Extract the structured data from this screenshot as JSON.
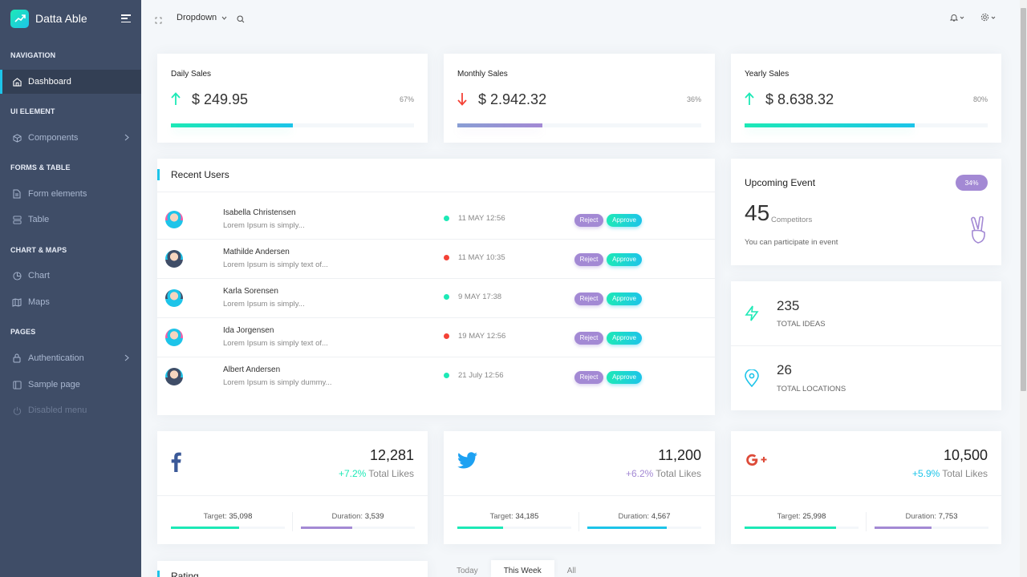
{
  "brand": {
    "name": "Datta Able"
  },
  "nav": {
    "captions": [
      "NAVIGATION",
      "UI ELEMENT",
      "FORMS & TABLE",
      "CHART & MAPS",
      "PAGES"
    ],
    "items": [
      {
        "label": "Dashboard",
        "icon": "home-icon"
      },
      {
        "label": "Components",
        "icon": "box-icon"
      },
      {
        "label": "Form elements",
        "icon": "file-text-icon"
      },
      {
        "label": "Table",
        "icon": "server-icon"
      },
      {
        "label": "Chart",
        "icon": "pie-chart-icon"
      },
      {
        "label": "Maps",
        "icon": "map-icon"
      },
      {
        "label": "Authentication",
        "icon": "lock-icon"
      },
      {
        "label": "Sample page",
        "icon": "sidebar-icon"
      },
      {
        "label": "Disabled menu",
        "icon": "power-icon"
      }
    ]
  },
  "header": {
    "dropdown_label": "Dropdown"
  },
  "sales": [
    {
      "title": "Daily Sales",
      "amount": "$ 249.95",
      "percent": "67%",
      "progress": 0.5,
      "direction": "up",
      "color": "#1de9b6"
    },
    {
      "title": "Monthly Sales",
      "amount": "$ 2.942.32",
      "percent": "36%",
      "progress": 0.35,
      "direction": "down",
      "color": "#a389d4"
    },
    {
      "title": "Yearly Sales",
      "amount": "$ 8.638.32",
      "percent": "80%",
      "progress": 0.7,
      "direction": "up",
      "color": "#1de9b6"
    }
  ],
  "recent_users": {
    "title": "Recent Users",
    "reject_label": "Reject",
    "approve_label": "Approve",
    "rows": [
      {
        "name": "Isabella Christensen",
        "desc": "Lorem Ipsum is simply...",
        "date": "11 MAY 12:56",
        "status": "green"
      },
      {
        "name": "Mathilde Andersen",
        "desc": "Lorem Ipsum is simply text of...",
        "date": "11 MAY 10:35",
        "status": "red"
      },
      {
        "name": "Karla Sorensen",
        "desc": "Lorem Ipsum is simply...",
        "date": "9 MAY 17:38",
        "status": "green"
      },
      {
        "name": "Ida Jorgensen",
        "desc": "Lorem Ipsum is simply text of...",
        "date": "19 MAY 12:56",
        "status": "red"
      },
      {
        "name": "Albert Andersen",
        "desc": "Lorem Ipsum is simply dummy...",
        "date": "21 July 12:56",
        "status": "green"
      }
    ]
  },
  "event": {
    "title": "Upcoming Event",
    "badge": "34%",
    "count": "45",
    "count_label": "Competitors",
    "note": "You can participate in event"
  },
  "totals": [
    {
      "value": "235",
      "label": "TOTAL IDEAS",
      "icon": "zap-icon"
    },
    {
      "value": "26",
      "label": "TOTAL LOCATIONS",
      "icon": "map-pin-icon"
    }
  ],
  "social": [
    {
      "network": "facebook",
      "icon": "facebook-icon",
      "count": "12,281",
      "change": "+7.2%",
      "change_color": "#1de9b6",
      "likes_label": "Total Likes",
      "target_label": "Target:",
      "target": "35,098",
      "duration_label": "Duration:",
      "duration": "3,539",
      "target_progress": 0.6,
      "duration_progress": 0.45,
      "target_color": "#1de9b6",
      "duration_color": "#a389d4"
    },
    {
      "network": "twitter",
      "icon": "twitter-icon",
      "count": "11,200",
      "change": "+6.2%",
      "change_color": "#a389d4",
      "likes_label": "Total Likes",
      "target_label": "Target:",
      "target": "34,185",
      "duration_label": "Duration:",
      "duration": "4,567",
      "target_progress": 0.4,
      "duration_progress": 0.7,
      "target_color": "#1de9b6",
      "duration_color": "#1dc4e9"
    },
    {
      "network": "google-plus",
      "icon": "google-plus-icon",
      "count": "10,500",
      "change": "+5.9%",
      "change_color": "#1dc4e9",
      "likes_label": "Total Likes",
      "target_label": "Target:",
      "target": "25,998",
      "duration_label": "Duration:",
      "duration": "7,753",
      "target_progress": 0.8,
      "duration_progress": 0.5,
      "target_color": "#1de9b6",
      "duration_color": "#a389d4"
    }
  ],
  "rating": {
    "title": "Rating"
  },
  "tabs": [
    "Today",
    "This Week",
    "All"
  ],
  "active_tab": "This Week"
}
